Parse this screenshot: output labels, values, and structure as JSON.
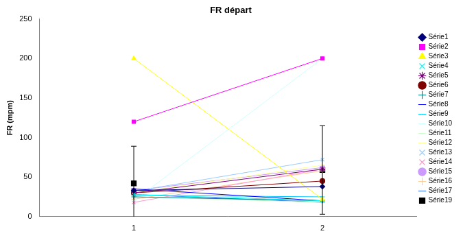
{
  "chart_data": {
    "type": "line",
    "title": "FR départ",
    "y_label": "FR (mpm)",
    "categories": [
      "1",
      "2"
    ],
    "ylim": [
      0,
      250
    ],
    "yticks": [
      0,
      50,
      100,
      150,
      200,
      250
    ],
    "grid": false,
    "legend": "right",
    "series": [
      {
        "name": "Série1",
        "color": "#000080",
        "marker": "diamond",
        "line_style": "solid",
        "values": [
          33,
          38
        ]
      },
      {
        "name": "Série2",
        "color": "#FF00FF",
        "marker": "square",
        "line_style": "solid",
        "values": [
          120,
          200
        ]
      },
      {
        "name": "Série3",
        "color": "#FFFF00",
        "marker": "triangle",
        "line_style": "solid",
        "values": [
          200,
          22
        ]
      },
      {
        "name": "Série4",
        "color": "#00FFFF",
        "marker": "x",
        "line_style": "solid",
        "values": [
          28,
          20
        ]
      },
      {
        "name": "Série5",
        "color": "#800080",
        "marker": "star",
        "line_style": "solid",
        "values": [
          30,
          60
        ]
      },
      {
        "name": "Série6",
        "color": "#800000",
        "marker": "circle",
        "line_style": "solid",
        "values": [
          30,
          45
        ]
      },
      {
        "name": "Série7",
        "color": "#008080",
        "marker": "plus",
        "line_style": "solid",
        "values": [
          25,
          20
        ]
      },
      {
        "name": "Série8",
        "color": "#0000FF",
        "marker": "dash",
        "line_style": "solid",
        "values": [
          35,
          20
        ]
      },
      {
        "name": "Série9",
        "color": "#00CCFF",
        "marker": "dash",
        "line_style": "solid",
        "values": [
          27,
          25
        ]
      },
      {
        "name": "Série10",
        "color": "#CCFFFF",
        "marker": "dash",
        "line_style": "solid",
        "values": [
          20,
          200
        ]
      },
      {
        "name": "Série11",
        "color": "#CCFFCC",
        "marker": "dash",
        "line_style": "solid",
        "values": [
          25,
          18
        ]
      },
      {
        "name": "Série12",
        "color": "#FFFF99",
        "marker": "dash",
        "line_style": "solid",
        "values": [
          30,
          65
        ]
      },
      {
        "name": "Série13",
        "color": "#99CCFF",
        "marker": "x",
        "line_style": "solid",
        "values": [
          32,
          72
        ]
      },
      {
        "name": "Série14",
        "color": "#FF99CC",
        "marker": "x",
        "line_style": "solid",
        "values": [
          18,
          60
        ]
      },
      {
        "name": "Série15",
        "color": "#CC99FF",
        "marker": "circle",
        "line_style": "solid",
        "values": [
          33,
          62
        ]
      },
      {
        "name": "Série16",
        "color": "#FFCC99",
        "marker": "plus",
        "line_style": "solid",
        "values": [
          22,
          58
        ]
      },
      {
        "name": "Série17",
        "color": "#3366FF",
        "marker": "dash",
        "line_style": "solid",
        "values": [
          28,
          18
        ]
      },
      {
        "name": "Série19",
        "color": "#000000",
        "marker": "square",
        "line_style": "none",
        "values": [
          42,
          59
        ],
        "error": [
          47,
          56
        ]
      }
    ]
  }
}
